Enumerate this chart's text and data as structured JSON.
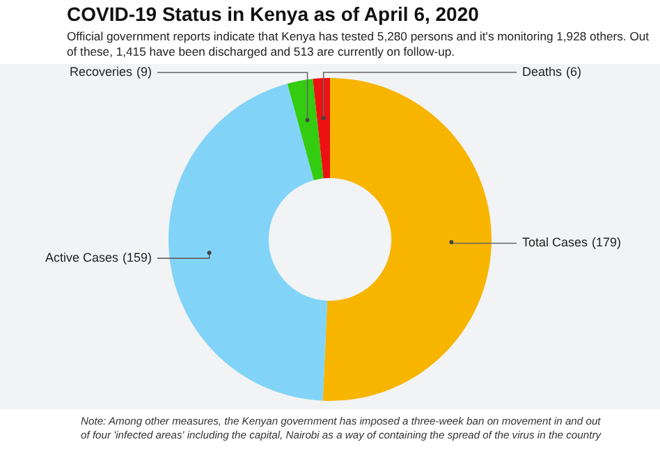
{
  "chart_data": {
    "type": "donut",
    "title": "COVID-19 Status in Kenya as of April 6, 2020",
    "subtitle": "Official government reports indicate that Kenya has tested 5,280 persons and it's monitoring 1,928 others. Out of these, 1,415 have been discharged and 513 are currently on follow-up.",
    "categories": [
      "Total Cases",
      "Active Cases",
      "Recoveries",
      "Deaths"
    ],
    "values": [
      179,
      159,
      9,
      6
    ],
    "colors": [
      "#f7b500",
      "#81d4f7",
      "#33cc11",
      "#ee1111"
    ],
    "value_labels": [
      "(179)",
      "(159)",
      "(9)",
      "(6)"
    ],
    "annotations": [
      "Note: Among other measures, the Kenyan government has imposed a three-week ban on movement in and out of four 'infected areas' including the capital, Nairobi as a way of containing the spread of the virus in the country"
    ]
  }
}
